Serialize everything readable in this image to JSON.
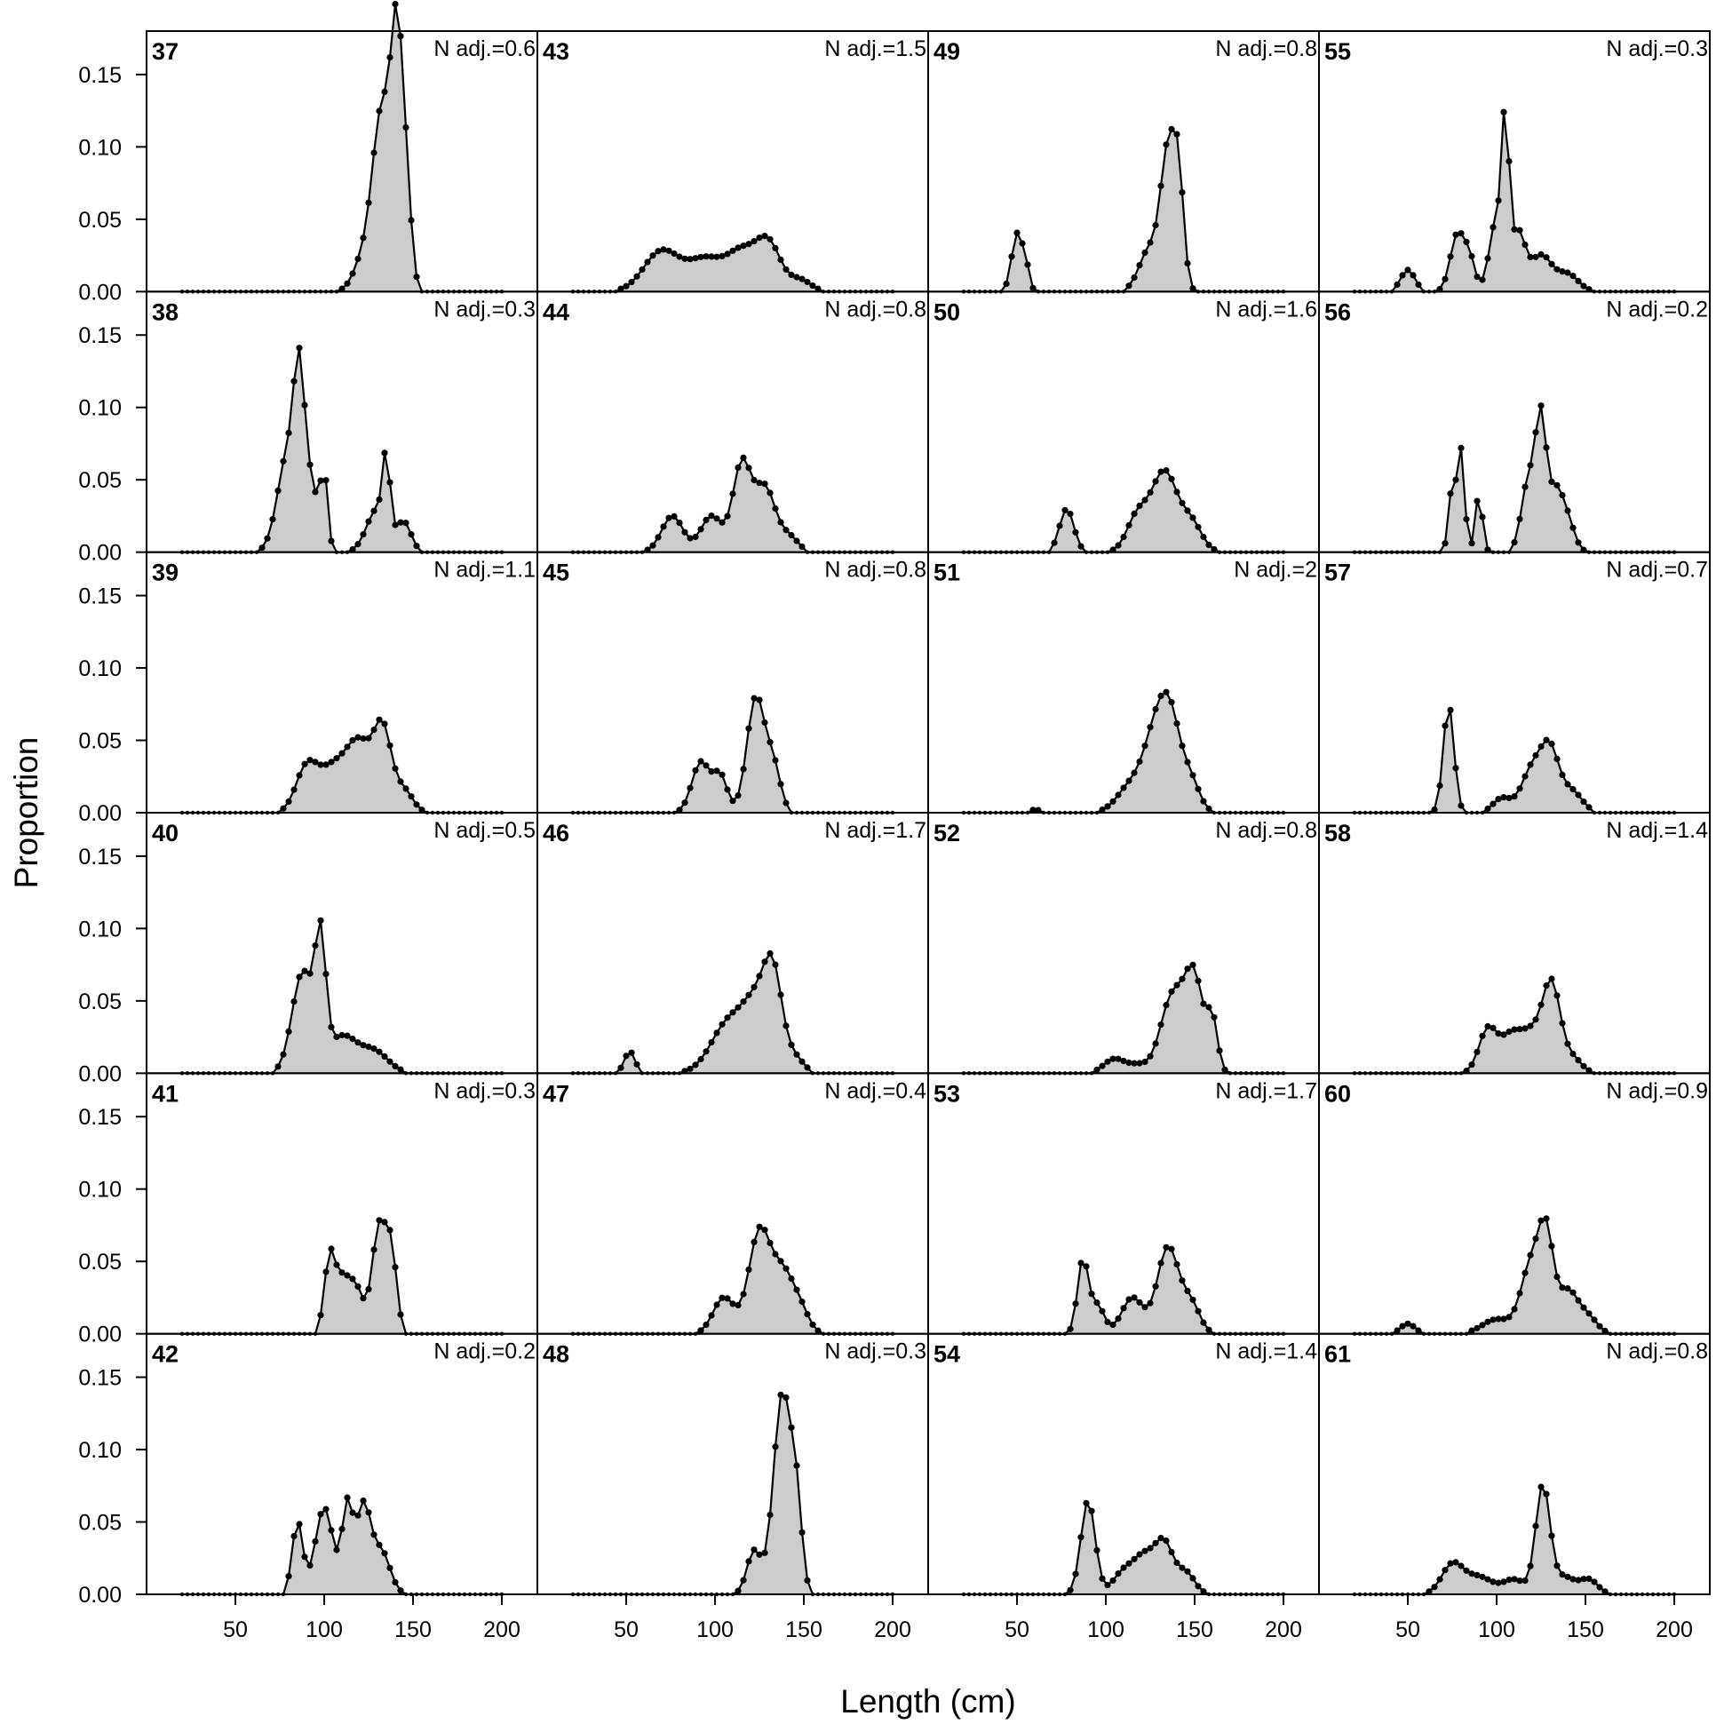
{
  "chart_data": {
    "type": "area",
    "xlabel": "Length (cm)",
    "ylabel": "Proportion",
    "xlim": [
      0,
      220
    ],
    "ylim": [
      0,
      0.18
    ],
    "x_ticks": [
      50,
      100,
      150,
      200
    ],
    "y_ticks": [
      0.0,
      0.05,
      0.1,
      0.15
    ],
    "x_tick_labels": [
      "50",
      "100",
      "150",
      "200"
    ],
    "y_tick_labels": [
      "0.00",
      "0.05",
      "0.10",
      "0.15"
    ],
    "bin_start": 20,
    "bin_width": 3,
    "grid": false,
    "legend": "none",
    "colors": {
      "fill": "#cccccc",
      "line": "#000000"
    },
    "panels": [
      {
        "id": "37",
        "nadj": "N adj.=0.6",
        "peaks": [
          [
            124,
            0.03,
            6
          ],
          [
            130,
            0.05,
            4
          ],
          [
            136,
            0.1,
            5
          ],
          [
            141,
            0.12,
            3
          ],
          [
            146,
            0.07,
            3
          ]
        ]
      },
      {
        "id": "38",
        "nadj": "N adj.=0.3",
        "peaks": [
          [
            80,
            0.07,
            6
          ],
          [
            86,
            0.09,
            3
          ],
          [
            93,
            0.04,
            4
          ],
          [
            100,
            0.05,
            2
          ],
          [
            130,
            0.03,
            6
          ],
          [
            135,
            0.05,
            2
          ],
          [
            145,
            0.02,
            4
          ]
        ]
      },
      {
        "id": "39",
        "nadj": "N adj.=1.1",
        "peaks": [
          [
            90,
            0.03,
            6
          ],
          [
            105,
            0.03,
            8
          ],
          [
            120,
            0.045,
            7
          ],
          [
            133,
            0.055,
            5
          ],
          [
            145,
            0.015,
            5
          ]
        ]
      },
      {
        "id": "40",
        "nadj": "N adj.=0.5",
        "peaks": [
          [
            88,
            0.07,
            6
          ],
          [
            98,
            0.08,
            3
          ],
          [
            110,
            0.025,
            8
          ],
          [
            128,
            0.015,
            8
          ]
        ]
      },
      {
        "id": "41",
        "nadj": "N adj.=0.3",
        "peaks": [
          [
            103,
            0.05,
            3
          ],
          [
            110,
            0.035,
            4
          ],
          [
            118,
            0.03,
            4
          ],
          [
            131,
            0.075,
            4
          ],
          [
            138,
            0.05,
            3
          ]
        ]
      },
      {
        "id": "42",
        "nadj": "N adj.=0.2",
        "peaks": [
          [
            85,
            0.05,
            3
          ],
          [
            100,
            0.06,
            5
          ],
          [
            113,
            0.06,
            3
          ],
          [
            122,
            0.06,
            4
          ],
          [
            132,
            0.03,
            5
          ]
        ]
      },
      {
        "id": "43",
        "nadj": "N adj.=1.5",
        "peaks": [
          [
            70,
            0.028,
            10
          ],
          [
            95,
            0.022,
            10
          ],
          [
            115,
            0.025,
            8
          ],
          [
            130,
            0.033,
            7
          ],
          [
            148,
            0.008,
            6
          ]
        ]
      },
      {
        "id": "44",
        "nadj": "N adj.=0.8",
        "peaks": [
          [
            76,
            0.025,
            6
          ],
          [
            98,
            0.025,
            6
          ],
          [
            115,
            0.06,
            5
          ],
          [
            128,
            0.045,
            6
          ],
          [
            142,
            0.01,
            5
          ]
        ]
      },
      {
        "id": "45",
        "nadj": "N adj.=0.8",
        "peaks": [
          [
            92,
            0.035,
            5
          ],
          [
            103,
            0.025,
            4
          ],
          [
            123,
            0.08,
            5
          ],
          [
            133,
            0.03,
            4
          ]
        ]
      },
      {
        "id": "46",
        "nadj": "N adj.=1.7",
        "peaks": [
          [
            52,
            0.015,
            3
          ],
          [
            108,
            0.035,
            10
          ],
          [
            125,
            0.045,
            8
          ],
          [
            133,
            0.05,
            5
          ],
          [
            145,
            0.01,
            5
          ]
        ]
      },
      {
        "id": "47",
        "nadj": "N adj.=0.4",
        "peaks": [
          [
            105,
            0.025,
            6
          ],
          [
            125,
            0.07,
            6
          ],
          [
            138,
            0.04,
            6
          ],
          [
            148,
            0.015,
            5
          ]
        ]
      },
      {
        "id": "48",
        "nadj": "N adj.=0.3",
        "peaks": [
          [
            122,
            0.03,
            4
          ],
          [
            138,
            0.14,
            5
          ],
          [
            146,
            0.05,
            3
          ]
        ]
      },
      {
        "id": "49",
        "nadj": "N adj.=0.8",
        "peaks": [
          [
            50,
            0.04,
            3
          ],
          [
            55,
            0.015,
            2
          ],
          [
            125,
            0.03,
            6
          ],
          [
            135,
            0.09,
            4
          ],
          [
            141,
            0.07,
            3
          ]
        ]
      },
      {
        "id": "50",
        "nadj": "N adj.=1.6",
        "peaks": [
          [
            78,
            0.03,
            4
          ],
          [
            118,
            0.025,
            6
          ],
          [
            133,
            0.055,
            7
          ],
          [
            148,
            0.02,
            6
          ]
        ]
      },
      {
        "id": "51",
        "nadj": "N adj.=2",
        "peaks": [
          [
            60,
            0.002,
            4
          ],
          [
            115,
            0.02,
            8
          ],
          [
            127,
            0.04,
            6
          ],
          [
            136,
            0.065,
            6
          ],
          [
            148,
            0.02,
            5
          ]
        ]
      },
      {
        "id": "52",
        "nadj": "N adj.=0.8",
        "peaks": [
          [
            105,
            0.01,
            6
          ],
          [
            118,
            0.005,
            5
          ],
          [
            138,
            0.055,
            7
          ],
          [
            150,
            0.06,
            5
          ],
          [
            160,
            0.035,
            3
          ]
        ]
      },
      {
        "id": "53",
        "nadj": "N adj.=1.7",
        "peaks": [
          [
            87,
            0.05,
            3
          ],
          [
            95,
            0.02,
            4
          ],
          [
            115,
            0.025,
            6
          ],
          [
            135,
            0.06,
            6
          ],
          [
            148,
            0.02,
            5
          ]
        ]
      },
      {
        "id": "54",
        "nadj": "N adj.=1.4",
        "peaks": [
          [
            90,
            0.065,
            4
          ],
          [
            110,
            0.015,
            6
          ],
          [
            122,
            0.025,
            6
          ],
          [
            133,
            0.033,
            5
          ],
          [
            145,
            0.015,
            5
          ]
        ]
      },
      {
        "id": "55",
        "nadj": "N adj.=0.3",
        "peaks": [
          [
            50,
            0.015,
            4
          ],
          [
            78,
            0.04,
            4
          ],
          [
            85,
            0.02,
            3
          ],
          [
            100,
            0.05,
            4
          ],
          [
            105,
            0.1,
            2
          ],
          [
            112,
            0.04,
            4
          ],
          [
            125,
            0.025,
            6
          ],
          [
            140,
            0.012,
            6
          ]
        ]
      },
      {
        "id": "56",
        "nadj": "N adj.=0.2",
        "peaks": [
          [
            75,
            0.045,
            2
          ],
          [
            80,
            0.07,
            2
          ],
          [
            90,
            0.04,
            2
          ],
          [
            118,
            0.05,
            4
          ],
          [
            125,
            0.085,
            3
          ],
          [
            133,
            0.04,
            4
          ],
          [
            140,
            0.02,
            4
          ]
        ]
      },
      {
        "id": "57",
        "nadj": "N adj.=0.7",
        "peaks": [
          [
            73,
            0.075,
            3
          ],
          [
            103,
            0.01,
            5
          ],
          [
            120,
            0.03,
            6
          ],
          [
            130,
            0.04,
            5
          ],
          [
            142,
            0.015,
            6
          ]
        ]
      },
      {
        "id": "58",
        "nadj": "N adj.=1.4",
        "peaks": [
          [
            95,
            0.03,
            5
          ],
          [
            108,
            0.025,
            6
          ],
          [
            120,
            0.025,
            6
          ],
          [
            131,
            0.06,
            5
          ],
          [
            143,
            0.01,
            5
          ]
        ]
      },
      {
        "id": "60",
        "nadj": "N adj.=0.9",
        "peaks": [
          [
            50,
            0.007,
            4
          ],
          [
            100,
            0.01,
            8
          ],
          [
            120,
            0.05,
            6
          ],
          [
            128,
            0.055,
            4
          ],
          [
            140,
            0.03,
            6
          ],
          [
            152,
            0.01,
            5
          ]
        ]
      },
      {
        "id": "61",
        "nadj": "N adj.=0.8",
        "peaks": [
          [
            75,
            0.02,
            6
          ],
          [
            90,
            0.012,
            8
          ],
          [
            110,
            0.01,
            6
          ],
          [
            126,
            0.075,
            4
          ],
          [
            138,
            0.012,
            6
          ],
          [
            152,
            0.01,
            5
          ]
        ]
      }
    ]
  }
}
